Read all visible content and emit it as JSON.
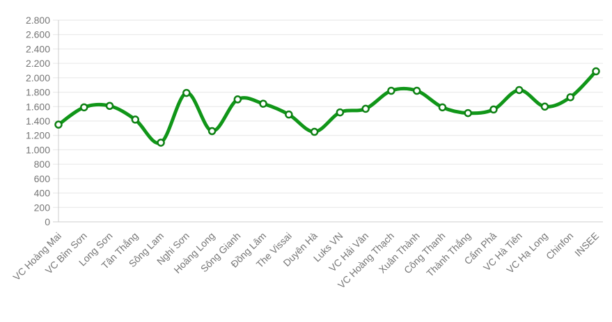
{
  "chart_data": {
    "type": "line",
    "title": "",
    "xlabel": "",
    "ylabel": "",
    "categories": [
      "VC Hoàng Mai",
      "VC Bỉm Sơn",
      "Long Sơn",
      "Tân Thắng",
      "Sông Lam",
      "Nghi Sơn",
      "Hoàng Long",
      "Sông Gianh",
      "Đồng Lâm",
      "The Vissai",
      "Duyên Hà",
      "Luks VN",
      "VC Hải Vân",
      "VC Hoàng Thạch",
      "Xuân Thành",
      "Công Thanh",
      "Thành Thắng",
      "Cẩm Phả",
      "VC Hà Tiên",
      "VC Hạ Long",
      "Chinfon",
      "INSEE"
    ],
    "values": [
      1350,
      1590,
      1610,
      1420,
      1100,
      1790,
      1260,
      1700,
      1640,
      1490,
      1250,
      1520,
      1570,
      1820,
      1820,
      1590,
      1510,
      1560,
      1830,
      1600,
      1730,
      2090
    ],
    "ylim": [
      0,
      2800
    ],
    "y_tick_step": 200,
    "y_tick_labels": [
      "0",
      "200",
      "400",
      "600",
      "800",
      "1.000",
      "1.200",
      "1.400",
      "1.600",
      "1.800",
      "2.000",
      "2.200",
      "2.400",
      "2.600",
      "2.800"
    ],
    "grid": true,
    "legend": "none",
    "smooth": true,
    "series_color": "#109618",
    "marker_fill": "#ffffff",
    "marker_stroke": "#0d8013",
    "gridline_color": "#e6e6e6",
    "baseline_color": "#cccccc",
    "axis_line_color": "#cccccc",
    "label_color": "#757575"
  }
}
